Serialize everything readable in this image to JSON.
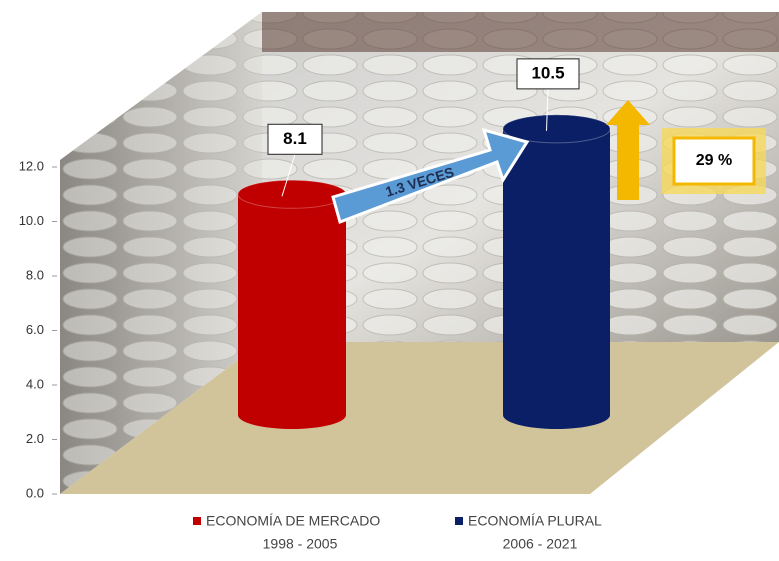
{
  "chart_data": {
    "type": "cylinder-bar",
    "series": [
      {
        "name": "ECONOMÍA DE MERCADO",
        "period": "1998 - 2005",
        "color": "#c00000",
        "values": [
          8.1
        ]
      },
      {
        "name": "ECONOMÍA PLURAL",
        "period": "2006 - 2021",
        "color": "#0b1f66",
        "values": [
          10.5
        ]
      }
    ],
    "ylim": [
      0,
      12
    ],
    "yticks": [
      {
        "value": 0,
        "label": "0.0"
      },
      {
        "value": 2,
        "label": "2.0"
      },
      {
        "value": 4,
        "label": "4.0"
      },
      {
        "value": 6,
        "label": "6.0"
      },
      {
        "value": 8,
        "label": "8.0"
      },
      {
        "value": 10,
        "label": "10.0"
      },
      {
        "value": 12,
        "label": "12.0"
      }
    ],
    "annotations": [
      "1.3 VECES",
      "29 %"
    ]
  }
}
